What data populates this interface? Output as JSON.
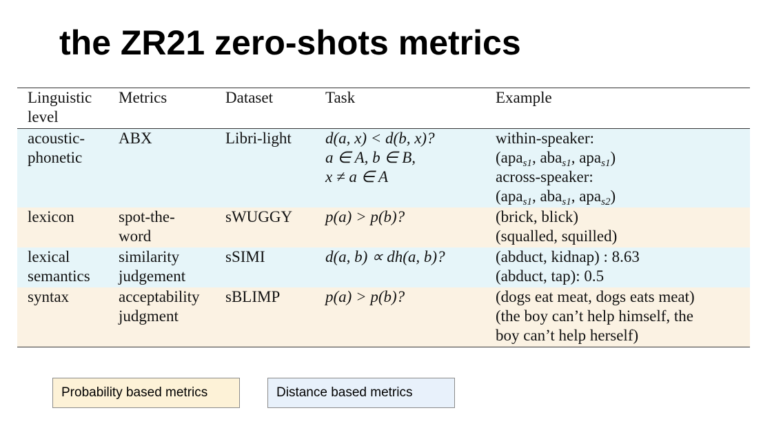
{
  "title": "the ZR21 zero-shots metrics",
  "table": {
    "headers": [
      "Linguistic level",
      "Metrics",
      "Dataset",
      "Task",
      "Example"
    ],
    "rows": [
      {
        "level": [
          "acoustic-",
          "phonetic"
        ],
        "metric": [
          "ABX"
        ],
        "dataset": "Libri-light",
        "task": [
          "d(a, x)  <  d(b, x)?",
          "a ∈ A, b ∈ B,",
          "x ≠ a ∈ A"
        ],
        "example": {
          "within_label": "within-speaker:",
          "within": [
            "apa",
            "s1",
            "aba",
            "s1",
            "apa",
            "s1"
          ],
          "across_label": "across-speaker:",
          "across": [
            "apa",
            "s1",
            "aba",
            "s1",
            "apa",
            "s2"
          ]
        },
        "category": "distance"
      },
      {
        "level": [
          "lexicon"
        ],
        "metric": [
          "spot-the-",
          "word"
        ],
        "dataset": "sWUGGY",
        "task": [
          "p(a) > p(b)?"
        ],
        "example": [
          "(brick, blick)",
          "(squalled, squilled)"
        ],
        "category": "probability"
      },
      {
        "level": [
          "lexical",
          "semantics"
        ],
        "metric": [
          "similarity",
          "judgement"
        ],
        "dataset": "sSIMI",
        "task": [
          "d(a, b) ∝ dh(a, b)?"
        ],
        "example": [
          "(abduct, kidnap) : 8.63",
          "(abduct, tap): 0.5"
        ],
        "category": "distance"
      },
      {
        "level": [
          "syntax"
        ],
        "metric": [
          "acceptability",
          "judgment"
        ],
        "dataset": "sBLIMP",
        "task": [
          "p(a) > p(b)?"
        ],
        "example": [
          "(dogs eat meat, dogs eats meat)",
          "(the boy can’t help himself, the",
          "boy can’t help herself)"
        ],
        "category": "probability"
      }
    ]
  },
  "legend": {
    "probability": {
      "label": "Probability based metrics",
      "color": "#fdf2d7"
    },
    "distance": {
      "label": "Distance based metrics",
      "color": "#e8f1fb"
    }
  },
  "colors": {
    "distance_row": "#e6f5f9",
    "probability_row": "#fbf2e3"
  }
}
